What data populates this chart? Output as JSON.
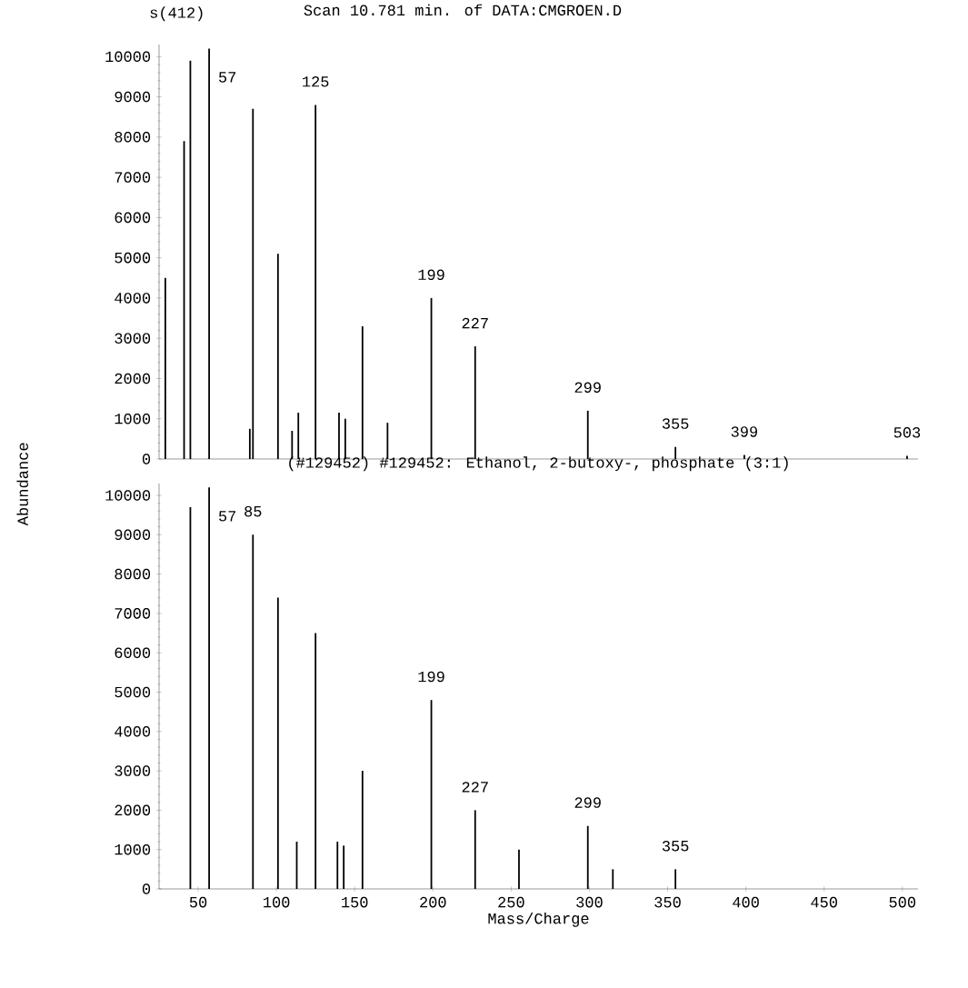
{
  "chart_data": [
    {
      "type": "bar",
      "title": "Scan 10.781 min. of DATA:CMGROEN.D",
      "ylabel": "Abundance",
      "color": "#000000",
      "tick_labels": "y",
      "x": [
        29,
        41,
        45,
        57,
        83,
        85,
        101,
        110,
        114,
        125,
        140,
        144,
        155,
        171,
        199,
        227,
        299,
        355,
        399,
        503
      ],
      "values": [
        4500,
        7900,
        9900,
        10200,
        750,
        8700,
        5100,
        700,
        1150,
        8800,
        1150,
        1000,
        3300,
        900,
        4000,
        2800,
        1200,
        300,
        100,
        80
      ],
      "xlim": [
        25,
        510
      ],
      "ylim": [
        0,
        10300
      ],
      "yticks": [
        0,
        1000,
        2000,
        3000,
        4000,
        5000,
        6000,
        7000,
        8000,
        9000,
        10000
      ],
      "annotations": [
        "s(412)",
        {
          "text": "57",
          "x": 57,
          "y": 10200
        },
        {
          "text": "125",
          "x": 125,
          "y": 8800
        },
        {
          "text": "199",
          "x": 199,
          "y": 4000
        },
        {
          "text": "227",
          "x": 227,
          "y": 2800
        },
        {
          "text": "299",
          "x": 299,
          "y": 1200
        },
        {
          "text": "355",
          "x": 355,
          "y": 300
        },
        {
          "text": "399",
          "x": 399,
          "y": 100
        },
        {
          "text": "503",
          "x": 503,
          "y": 80
        }
      ]
    },
    {
      "type": "bar",
      "title": "(#129452) #129452: Ethanol, 2-butoxy-, phosphate (3:1)",
      "xlabel": "Mass/Charge",
      "color": "#000000",
      "x": [
        45,
        57,
        85,
        101,
        113,
        125,
        139,
        143,
        155,
        199,
        227,
        255,
        299,
        315,
        355
      ],
      "values": [
        9700,
        10200,
        9000,
        7400,
        1200,
        6500,
        1200,
        1100,
        3000,
        4800,
        2000,
        1000,
        1600,
        500,
        500
      ],
      "xlim": [
        25,
        510
      ],
      "ylim": [
        0,
        10300
      ],
      "xticks": [
        50,
        100,
        150,
        200,
        250,
        300,
        350,
        400,
        450,
        500
      ],
      "yticks": [
        0,
        1000,
        2000,
        3000,
        4000,
        5000,
        6000,
        7000,
        8000,
        9000,
        10000
      ],
      "annotations": [
        {
          "text": "57",
          "x": 57,
          "y": 10200
        },
        {
          "text": "85",
          "x": 85,
          "y": 9000
        },
        {
          "text": "199",
          "x": 199,
          "y": 4800
        },
        {
          "text": "227",
          "x": 227,
          "y": 2000
        },
        {
          "text": "299",
          "x": 299,
          "y": 1600
        },
        {
          "text": "355",
          "x": 355,
          "y": 500
        }
      ]
    }
  ]
}
